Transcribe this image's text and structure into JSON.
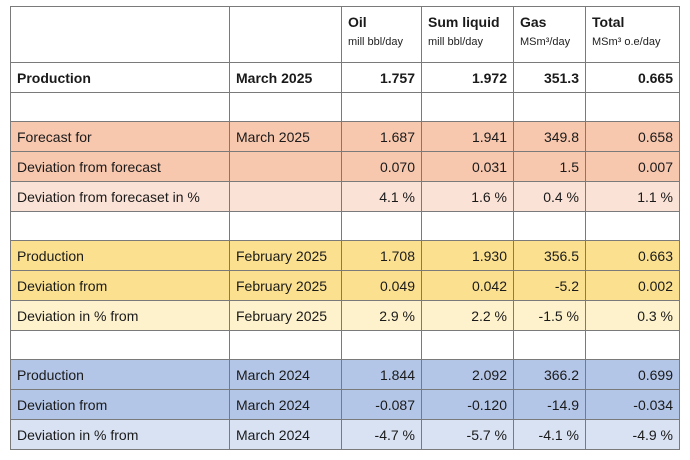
{
  "columns": [
    {
      "name": "Oil",
      "unit": "mill bbl/day"
    },
    {
      "name": "Sum liquid",
      "unit": "mill bbl/day"
    },
    {
      "name": "Gas",
      "unit": "MSm³/day"
    },
    {
      "name": "Total",
      "unit": "MSm³ o.e/day"
    }
  ],
  "rows": [
    {
      "label": "Production",
      "period": "March 2025",
      "values": [
        "1.757",
        "1.972",
        "351.3",
        "0.665"
      ]
    },
    {
      "label": "Forecast for",
      "period": "March 2025",
      "values": [
        "1.687",
        "1.941",
        "349.8",
        "0.658"
      ]
    },
    {
      "label": "Deviation from forecast",
      "period": "",
      "values": [
        "0.070",
        "0.031",
        "1.5",
        "0.007"
      ]
    },
    {
      "label": "Deviation from forecaset in %",
      "period": "",
      "values": [
        "4.1 %",
        "1.6 %",
        "0.4 %",
        "1.1 %"
      ]
    },
    {
      "label": "Production",
      "period": "February 2025",
      "values": [
        "1.708",
        "1.930",
        "356.5",
        "0.663"
      ]
    },
    {
      "label": "Deviation from",
      "period": "February 2025",
      "values": [
        "0.049",
        "0.042",
        "-5.2",
        "0.002"
      ]
    },
    {
      "label": "Deviation in % from",
      "period": "February 2025",
      "values": [
        "2.9 %",
        "2.2 %",
        "-1.5 %",
        "0.3 %"
      ]
    },
    {
      "label": "Production",
      "period": "March 2024",
      "values": [
        "1.844",
        "2.092",
        "366.2",
        "0.699"
      ]
    },
    {
      "label": "Deviation from",
      "period": "March 2024",
      "values": [
        "-0.087",
        "-0.120",
        "-14.9",
        "-0.034"
      ]
    },
    {
      "label": "Deviation in % from",
      "period": "March 2024",
      "values": [
        "-4.7 %",
        "-5.7 %",
        "-4.1 %",
        "-4.9 %"
      ]
    }
  ],
  "colors": {
    "salmon_dark": "#f7c7ae",
    "salmon_light": "#fbe2d6",
    "yellow_dark": "#fbe18f",
    "yellow_light": "#fef2cc",
    "blue_dark": "#b4c6e7",
    "blue_light": "#d9e2f3"
  }
}
